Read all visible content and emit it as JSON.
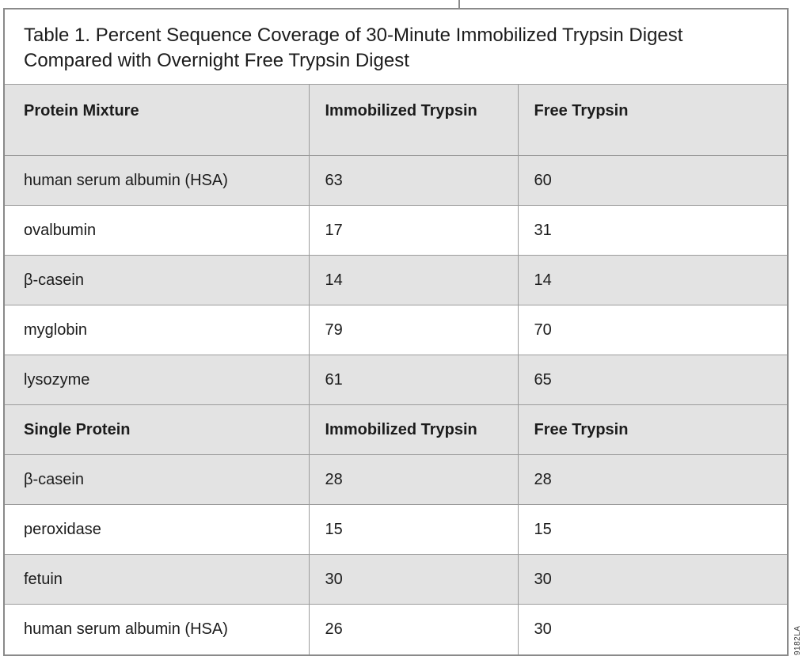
{
  "title": {
    "line1": "Table 1. Percent Sequence Coverage of 30-Minute Immobilized Trypsin Digest",
    "line2": "Compared with Overnight Free Trypsin Digest"
  },
  "table": {
    "sections": [
      {
        "header": [
          "Protein Mixture",
          "Immobilized Trypsin",
          "Free Trypsin"
        ],
        "rows": [
          [
            "human serum albumin (HSA)",
            "63",
            "60"
          ],
          [
            "ovalbumin",
            "17",
            "31"
          ],
          [
            "β-casein",
            "14",
            "14"
          ],
          [
            "myglobin",
            "79",
            "70"
          ],
          [
            "lysozyme",
            "61",
            "65"
          ]
        ]
      },
      {
        "header": [
          "Single Protein",
          "Immobilized Trypsin",
          "Free Trypsin"
        ],
        "rows": [
          [
            "β-casein",
            "28",
            "28"
          ],
          [
            "peroxidase",
            "15",
            "15"
          ],
          [
            "fetuin",
            "30",
            "30"
          ],
          [
            "human serum albumin (HSA)",
            "26",
            "30"
          ]
        ]
      }
    ]
  },
  "side_code": "9182LA",
  "colors": {
    "row_shade": "#e3e3e3",
    "cell_border": "#9c9c9c",
    "frame_border": "#8a8a8a",
    "text": "#1c1c1c",
    "background": "#ffffff"
  }
}
